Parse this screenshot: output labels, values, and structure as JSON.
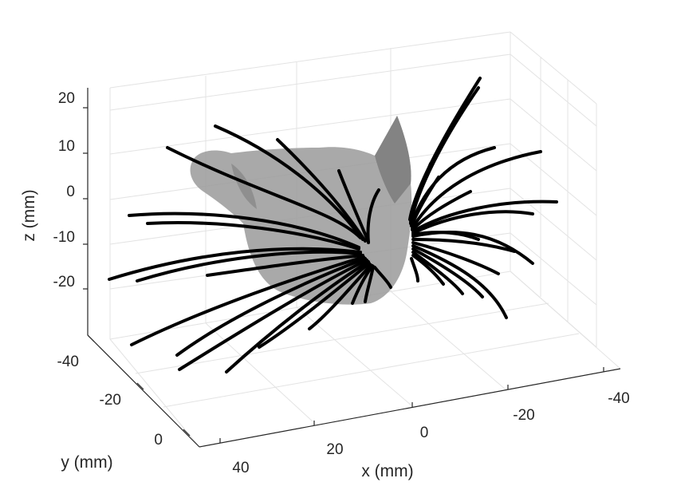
{
  "chart_data": {
    "type": "scatter",
    "subtype": "3d-line-plot",
    "title": "",
    "xlabel": "x (mm)",
    "ylabel": "y (mm)",
    "zlabel": "z (mm)",
    "grid": true,
    "x_ticks": [
      "40",
      "20",
      "0",
      "-20",
      "-40"
    ],
    "y_ticks": [
      "-40",
      "-20",
      "0"
    ],
    "z_ticks": [
      "20",
      "10",
      "0",
      "-10",
      "-20"
    ],
    "xlim": [
      -45,
      45
    ],
    "ylim": [
      -45,
      10
    ],
    "zlim": [
      -30,
      25
    ],
    "series": [
      {
        "values": [],
        "description_color": "#000000"
      }
    ],
    "colors": {
      "whiskers": "#000000",
      "head_surface": "#8c8c8c",
      "grid": "#e3e3e3",
      "axis": "#262626"
    }
  }
}
